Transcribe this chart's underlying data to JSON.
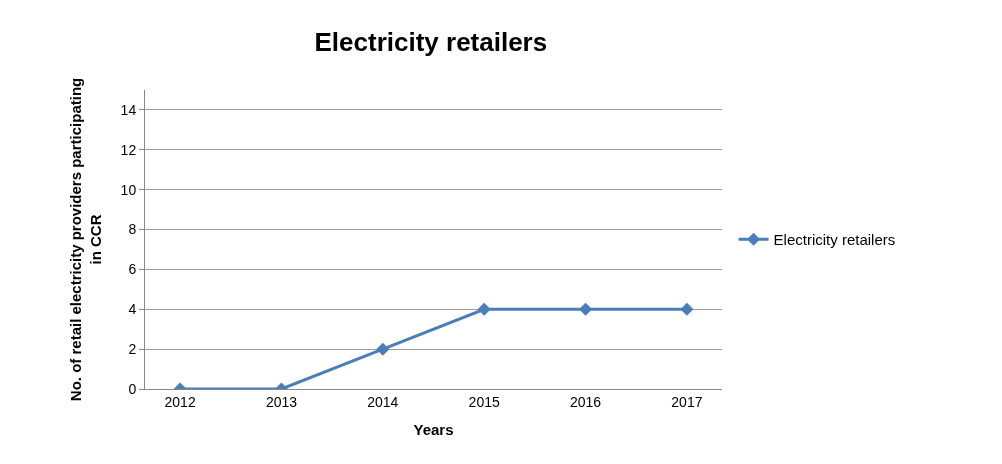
{
  "chart_data": {
    "type": "line",
    "title": "Electricity retailers",
    "xlabel": "Years",
    "ylabel": "No. of retail electricity providers participating in CCR",
    "categories": [
      "2012",
      "2013",
      "2014",
      "2015",
      "2016",
      "2017"
    ],
    "series": [
      {
        "name": "Electricity retailers",
        "color": "#4a7ebb",
        "values": [
          0,
          0,
          2,
          4,
          4,
          4
        ]
      }
    ],
    "ylim": [
      0,
      15
    ],
    "yticks": [
      0,
      2,
      4,
      6,
      8,
      10,
      12,
      14
    ],
    "grid": "y",
    "legend": "right",
    "marker": "diamond",
    "line_style": "solid"
  }
}
